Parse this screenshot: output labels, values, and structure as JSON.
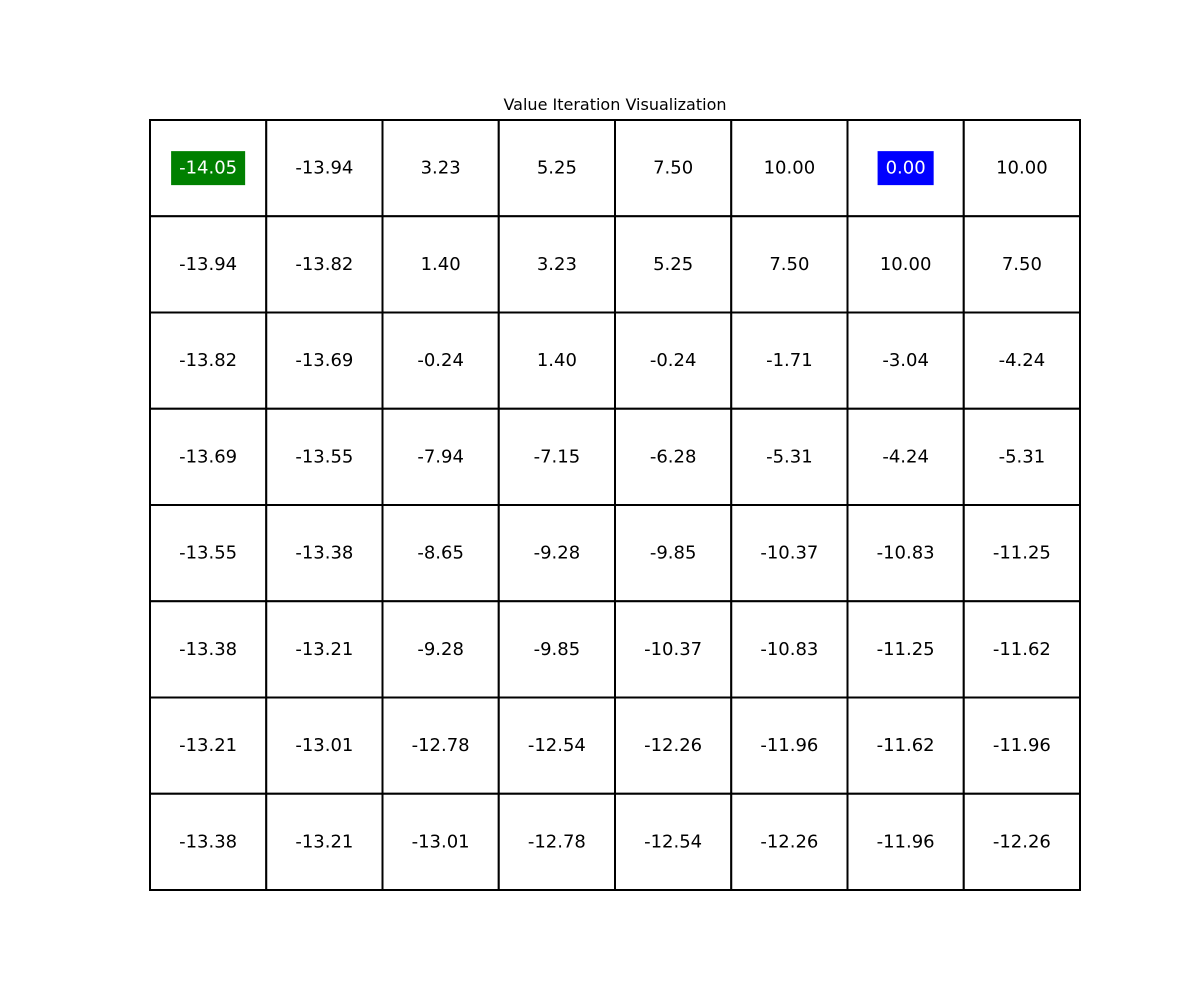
{
  "chart_data": {
    "type": "heatmap",
    "title": "Value Iteration Visualization",
    "rows": 8,
    "cols": 8,
    "values": [
      [
        "-14.05",
        "-13.94",
        "3.23",
        "5.25",
        "7.50",
        "10.00",
        "0.00",
        "10.00"
      ],
      [
        "-13.94",
        "-13.82",
        "1.40",
        "3.23",
        "5.25",
        "7.50",
        "10.00",
        "7.50"
      ],
      [
        "-13.82",
        "-13.69",
        "-0.24",
        "1.40",
        "-0.24",
        "-1.71",
        "-3.04",
        "-4.24"
      ],
      [
        "-13.69",
        "-13.55",
        "-7.94",
        "-7.15",
        "-6.28",
        "-5.31",
        "-4.24",
        "-5.31"
      ],
      [
        "-13.55",
        "-13.38",
        "-8.65",
        "-9.28",
        "-9.85",
        "-10.37",
        "-10.83",
        "-11.25"
      ],
      [
        "-13.38",
        "-13.21",
        "-9.28",
        "-9.85",
        "-10.37",
        "-10.83",
        "-11.25",
        "-11.62"
      ],
      [
        "-13.21",
        "-13.01",
        "-12.78",
        "-12.54",
        "-12.26",
        "-11.96",
        "-11.62",
        "-11.96"
      ],
      [
        "-13.38",
        "-13.21",
        "-13.01",
        "-12.78",
        "-12.54",
        "-12.26",
        "-11.96",
        "-12.26"
      ]
    ],
    "highlights": [
      {
        "row": 0,
        "col": 0,
        "color": "#008000",
        "text_color": "#ffffff"
      },
      {
        "row": 0,
        "col": 6,
        "color": "#0000ff",
        "text_color": "#ffffff"
      }
    ],
    "cell_color": "#ffffff",
    "grid_color": "#000000",
    "text_color": "#000000",
    "grid": true
  }
}
